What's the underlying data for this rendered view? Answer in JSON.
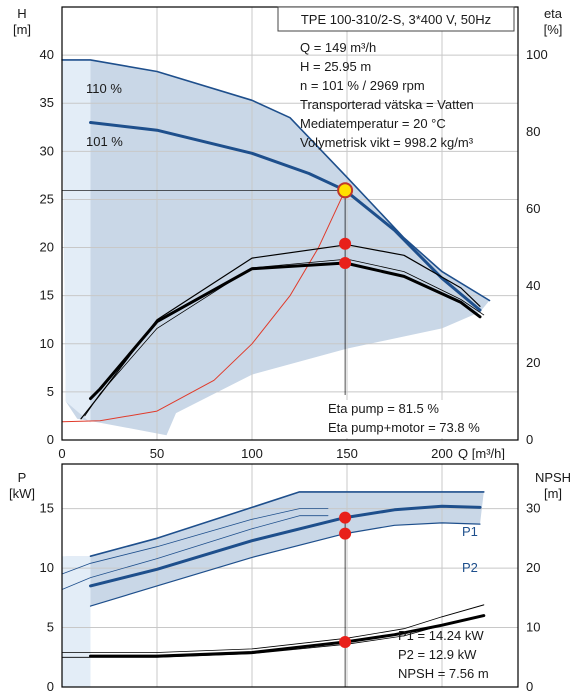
{
  "colors": {
    "envelope_fill": "#c9d7e7",
    "envelope_light": "#e3edf7",
    "curve_blue": "#1e4f8c",
    "curve_black": "#000000",
    "system_red": "#e03a2a",
    "marker_red": "#e8201a",
    "marker_yellow": "#ffe000",
    "grid": "#c8c8c8"
  },
  "chart_data": [
    {
      "type": "line",
      "panel": "head",
      "title": "TPE 100-310/2-S, 3*400 V, 50Hz",
      "xlabel": "Q [m³/h]",
      "ylabel_line1": "H",
      "ylabel_line2": "[m]",
      "y2label_line1": "eta",
      "y2label_line2": "[%]",
      "xlim": [
        0,
        240
      ],
      "ylim": [
        0,
        45
      ],
      "y2lim": [
        0,
        112.5
      ],
      "x_ticks": [
        0,
        50,
        100,
        150,
        200
      ],
      "y_ticks": [
        0,
        5,
        10,
        15,
        20,
        25,
        30,
        35,
        40
      ],
      "y2_ticks": [
        0,
        20,
        40,
        60,
        80,
        100
      ],
      "grid": true,
      "info_lines": [
        "Q = 149 m³/h",
        "H = 25.95 m",
        "n = 101 % / 2969 rpm",
        "Transporterad vätska = Vatten",
        "Mediatemperatur = 20 °C",
        "Volymetrisk vikt = 998.2 kg/m³"
      ],
      "eta_lines": [
        "Eta pump = 81.5 %",
        "Eta pump+motor = 73.8 %"
      ],
      "curve_labels": [
        "110 %",
        "101 %"
      ],
      "series": [
        {
          "name": "110 %",
          "axis": "y",
          "color": "curve_blue",
          "width": 1.6,
          "x": [
            0,
            15,
            50,
            100,
            120,
            150,
            180,
            200,
            225
          ],
          "y": [
            39.5,
            39.5,
            38.3,
            35.3,
            33.5,
            27.3,
            21.0,
            17.5,
            14.5
          ]
        },
        {
          "name": "101 %",
          "axis": "y",
          "color": "curve_blue",
          "width": 3,
          "x": [
            15,
            50,
            100,
            130,
            149,
            175,
            200,
            220
          ],
          "y": [
            33.0,
            32.2,
            29.8,
            27.7,
            25.95,
            21.8,
            16.8,
            13.5
          ]
        },
        {
          "axis": "y",
          "color": "system_red",
          "width": 1,
          "x": [
            0,
            20,
            50,
            80,
            100,
            120,
            135,
            149
          ],
          "y": [
            1.9,
            2.0,
            3.0,
            6.2,
            10.0,
            15.0,
            20.0,
            25.95
          ]
        },
        {
          "axis": "y",
          "color": "curve_black",
          "width": 1.2,
          "x": [
            10,
            20,
            50,
            100,
            150,
            180,
            210,
            220
          ],
          "y": [
            2.2,
            4.7,
            12.5,
            18.9,
            20.3,
            19.2,
            15.8,
            13.9
          ]
        },
        {
          "axis": "y",
          "color": "curve_black",
          "width": 0.8,
          "x": [
            12,
            20,
            50,
            100,
            150,
            180,
            210,
            222
          ],
          "y": [
            2.5,
            4.8,
            11.6,
            17.9,
            18.8,
            17.5,
            14.6,
            13.0
          ]
        },
        {
          "axis": "y",
          "color": "curve_black",
          "width": 3,
          "x": [
            15,
            20,
            50,
            100,
            149,
            180,
            210,
            220
          ],
          "y": [
            4.3,
            5.3,
            12.3,
            17.8,
            18.4,
            17.0,
            14.3,
            12.8
          ]
        }
      ],
      "envelope": {
        "x": [
          15,
          50,
          100,
          120,
          150,
          180,
          200,
          225,
          220,
          200,
          150,
          100,
          60,
          55,
          20,
          8,
          2,
          0
        ],
        "y": [
          39.5,
          38.3,
          35.3,
          33.5,
          27.3,
          21.0,
          17.5,
          14.5,
          13.3,
          11.6,
          9.5,
          6.8,
          2.8,
          0.5,
          1.8,
          2.2,
          4.0,
          39.5
        ]
      },
      "envelope_light": {
        "x": [
          0,
          15,
          15,
          2
        ],
        "y": [
          39.5,
          39.5,
          1.8,
          4.0
        ]
      },
      "markers": [
        {
          "x": 149,
          "y": 25.95,
          "color": "marker_yellow"
        },
        {
          "x": 149,
          "y": 20.4,
          "color": "marker_red"
        },
        {
          "x": 149,
          "y": 18.4,
          "color": "marker_red"
        }
      ],
      "duty_point": {
        "x": 149,
        "y": 25.95
      }
    },
    {
      "type": "line",
      "panel": "power",
      "ylabel_line1": "P",
      "ylabel_line2": "[kW]",
      "y2label_line1": "NPSH",
      "y2label_line2": "[m]",
      "xlim": [
        0,
        240
      ],
      "ylim": [
        0,
        18.75
      ],
      "y2lim": [
        0,
        37.5
      ],
      "y_ticks": [
        0,
        5,
        10,
        15
      ],
      "y2_ticks": [
        0,
        10,
        20,
        30
      ],
      "grid": true,
      "info_lines": [
        "P1 = 14.24 kW",
        "P2 = 12.9 kW",
        "NPSH = 7.56 m"
      ],
      "curve_labels": [
        "P1",
        "P2"
      ],
      "series": [
        {
          "name": "P1",
          "axis": "y",
          "color": "curve_blue",
          "width": 1.6,
          "x": [
            15,
            50,
            100,
            125,
            150,
            200,
            222
          ],
          "y": [
            11.0,
            12.5,
            15.1,
            16.4,
            16.4,
            16.4,
            16.4
          ]
        },
        {
          "name": "P2",
          "axis": "y",
          "color": "curve_blue",
          "width": 1.2,
          "x": [
            15,
            50,
            100,
            149,
            175,
            200,
            220
          ],
          "y": [
            6.8,
            8.5,
            10.9,
            12.9,
            13.6,
            13.8,
            13.7
          ]
        },
        {
          "axis": "y",
          "color": "curve_blue",
          "width": 3,
          "x": [
            15,
            50,
            100,
            149,
            175,
            200,
            220
          ],
          "y": [
            8.5,
            9.9,
            12.3,
            14.24,
            14.9,
            15.2,
            15.1
          ]
        },
        {
          "axis": "y",
          "color": "curve_blue",
          "width": 0.8,
          "x": [
            0,
            15,
            50,
            100,
            125,
            140
          ],
          "y": [
            9.5,
            10.4,
            11.8,
            14.1,
            15.0,
            15.0
          ]
        },
        {
          "axis": "y",
          "color": "curve_blue",
          "width": 0.8,
          "x": [
            0,
            15,
            50,
            100,
            125,
            140
          ],
          "y": [
            8.2,
            9.2,
            10.8,
            13.3,
            14.4,
            14.4
          ]
        },
        {
          "axis": "y",
          "color": "curve_black",
          "width": 0.8,
          "x": [
            0,
            50,
            100,
            150,
            180,
            200
          ],
          "y": [
            2.9,
            2.9,
            3.2,
            4.1,
            4.9,
            5.9
          ]
        },
        {
          "axis": "y",
          "color": "curve_black",
          "width": 0.8,
          "x": [
            0,
            50,
            100,
            150,
            180,
            200
          ],
          "y": [
            2.5,
            2.5,
            2.8,
            3.6,
            4.3,
            5.2
          ]
        },
        {
          "axis": "y",
          "color": "curve_black",
          "width": 3,
          "x": [
            15,
            50,
            100,
            149,
            175,
            200,
            222
          ],
          "y": [
            2.6,
            2.6,
            2.9,
            3.78,
            4.4,
            5.2,
            6.0
          ]
        },
        {
          "axis": "y",
          "color": "curve_black",
          "width": 1,
          "x": [
            200,
            222
          ],
          "y": [
            5.9,
            6.9
          ]
        }
      ],
      "envelope": {
        "x": [
          15,
          50,
          100,
          125,
          150,
          200,
          222,
          220,
          200,
          175,
          149,
          100,
          50,
          15,
          2,
          0,
          0,
          2
        ],
        "y": [
          11.0,
          12.5,
          15.1,
          16.4,
          16.4,
          16.4,
          16.4,
          13.7,
          13.8,
          13.6,
          12.9,
          10.9,
          8.5,
          6.8,
          0,
          0,
          9.5,
          11.0
        ]
      },
      "envelope_light": {
        "x": [
          0,
          15,
          15,
          0
        ],
        "y": [
          11.0,
          11.0,
          0,
          0
        ]
      },
      "markers": [
        {
          "x": 149,
          "y": 14.24,
          "color": "marker_red"
        },
        {
          "x": 149,
          "y": 12.9,
          "color": "marker_red"
        },
        {
          "x": 149,
          "y": 3.78,
          "color": "marker_red"
        }
      ],
      "duty_x": 149
    }
  ]
}
